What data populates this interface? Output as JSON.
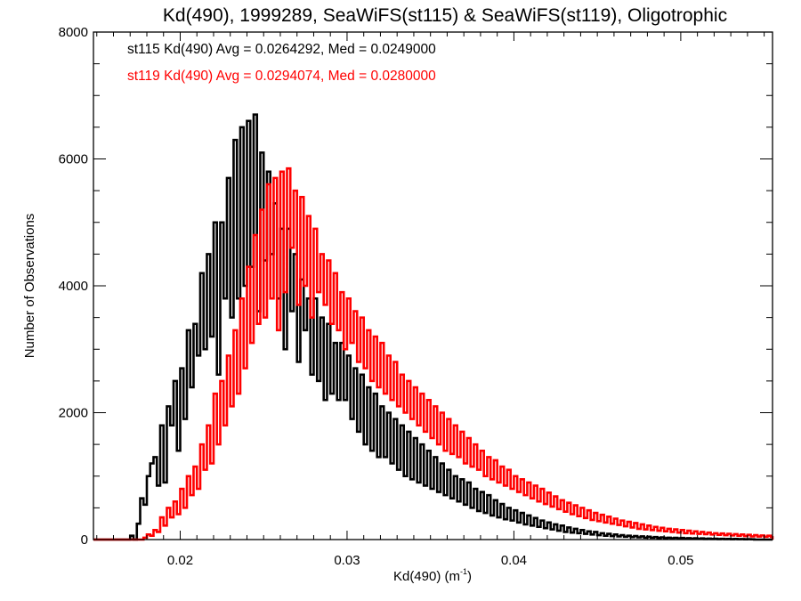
{
  "chart_data": {
    "type": "histogram",
    "title": "Kd(490), 1999289, SeaWiFS(st115) & SeaWiFS(st119), Oligotrophic",
    "xlabel_main": "Kd(490) (m",
    "xlabel_sup": "-1",
    "xlabel_close": ")",
    "ylabel": "Number of Observations",
    "xlim": [
      0.0148,
      0.0555
    ],
    "ylim": [
      0,
      8000
    ],
    "x_ticks": [
      0.02,
      0.03,
      0.04,
      0.05
    ],
    "x_tick_labels": [
      "0.02",
      "0.03",
      "0.04",
      "0.05"
    ],
    "x_minor_step": 0.001,
    "y_ticks": [
      0,
      2000,
      4000,
      6000,
      8000
    ],
    "y_tick_labels": [
      "0",
      "2000",
      "4000",
      "6000",
      "8000"
    ],
    "y_minor_step": 500,
    "grid": false,
    "legend_placement": "top-left",
    "bin_width": 0.0002,
    "series": [
      {
        "name": "st115",
        "color": "#000000",
        "legend": "st115 Kd(490) Avg = 0.0264292, Med = 0.0249000",
        "avg": 0.0264292,
        "median": 0.0249,
        "x_start": 0.0168,
        "values": [
          0,
          60,
          0,
          250,
          650,
          550,
          1000,
          1200,
          1300,
          850,
          1800,
          900,
          2100,
          1800,
          2500,
          1400,
          2700,
          1900,
          3300,
          2400,
          3400,
          2900,
          4200,
          3000,
          4500,
          3200,
          5000,
          2600,
          5000,
          3800,
          5700,
          3500,
          6300,
          3800,
          6500,
          4000,
          6600,
          4300,
          6700,
          3600,
          6100,
          4400,
          5800,
          4500,
          5300,
          3800,
          4900,
          3000,
          4900,
          3600,
          4500,
          2800,
          4100,
          3300,
          3800,
          2600,
          3800,
          2500,
          3500,
          2200,
          3400,
          2300,
          3100,
          2200,
          3100,
          2200,
          2900,
          1900,
          2700,
          1700,
          2600,
          1500,
          2400,
          1400,
          2300,
          1300,
          2100,
          1300,
          2000,
          1200,
          1900,
          1100,
          1800,
          1000,
          1700,
          950,
          1600,
          900,
          1500,
          850,
          1400,
          800,
          1300,
          750,
          1200,
          700,
          1100,
          650,
          1000,
          600,
          950,
          550,
          900,
          500,
          800,
          450,
          750,
          420,
          700,
          380,
          620,
          350,
          560,
          320,
          500,
          300,
          460,
          270,
          420,
          240,
          380,
          220,
          340,
          200,
          300,
          180,
          270,
          160,
          240,
          140,
          220,
          120,
          190,
          110,
          170,
          100,
          150,
          90,
          130,
          80,
          120,
          70,
          100,
          60,
          90,
          55,
          80,
          50,
          70,
          45,
          60,
          40,
          55,
          35,
          50,
          30,
          45,
          28,
          40,
          25,
          35,
          22,
          30,
          20,
          28,
          18,
          25,
          16,
          22,
          14,
          20,
          12,
          18,
          10,
          15,
          10,
          14,
          8,
          12,
          8,
          10,
          6,
          9,
          6,
          8,
          5,
          7,
          4
        ]
      },
      {
        "name": "st119",
        "color": "#ff0000",
        "legend": "st119 Kd(490) Avg = 0.0294074, Med = 0.0280000",
        "avg": 0.0294074,
        "median": 0.028,
        "x_start": 0.0176,
        "values": [
          0,
          30,
          80,
          60,
          150,
          120,
          350,
          220,
          500,
          350,
          600,
          400,
          800,
          500,
          1000,
          700,
          1150,
          800,
          1500,
          1100,
          1800,
          1200,
          2300,
          1500,
          2500,
          1800,
          2900,
          2100,
          3300,
          2300,
          3800,
          2700,
          4300,
          3100,
          4800,
          3400,
          5200,
          3500,
          5600,
          3800,
          5700,
          3300,
          5800,
          3900,
          5850,
          4600,
          5500,
          3700,
          5400,
          4000,
          5100,
          3500,
          4900,
          3900,
          4500,
          3700,
          4400,
          3400,
          4200,
          3300,
          3900,
          3000,
          3800,
          3100,
          3600,
          2800,
          3500,
          2700,
          3300,
          2500,
          3200,
          2400,
          3100,
          2300,
          2900,
          2200,
          2800,
          2100,
          2600,
          2000,
          2500,
          1900,
          2400,
          1800,
          2300,
          1700,
          2200,
          1600,
          2100,
          1500,
          2000,
          1400,
          1900,
          1350,
          1800,
          1300,
          1700,
          1200,
          1600,
          1150,
          1500,
          1100,
          1400,
          1000,
          1300,
          950,
          1250,
          900,
          1150,
          850,
          1100,
          800,
          1000,
          750,
          950,
          700,
          900,
          650,
          850,
          600,
          800,
          560,
          740,
          520,
          680,
          480,
          620,
          440,
          580,
          400,
          540,
          370,
          500,
          340,
          460,
          310,
          420,
          290,
          390,
          270,
          360,
          250,
          330,
          230,
          300,
          210,
          280,
          190,
          260,
          170,
          240,
          160,
          220,
          150,
          200,
          140,
          185,
          130,
          170,
          120,
          160,
          110,
          150,
          100,
          140,
          95,
          130,
          90,
          120,
          85,
          110,
          80,
          100,
          75,
          95,
          70,
          90,
          65,
          85,
          60,
          80,
          55,
          75,
          50,
          70,
          48,
          65,
          45,
          60,
          42,
          55,
          40,
          50,
          38,
          48,
          35
        ]
      }
    ]
  }
}
